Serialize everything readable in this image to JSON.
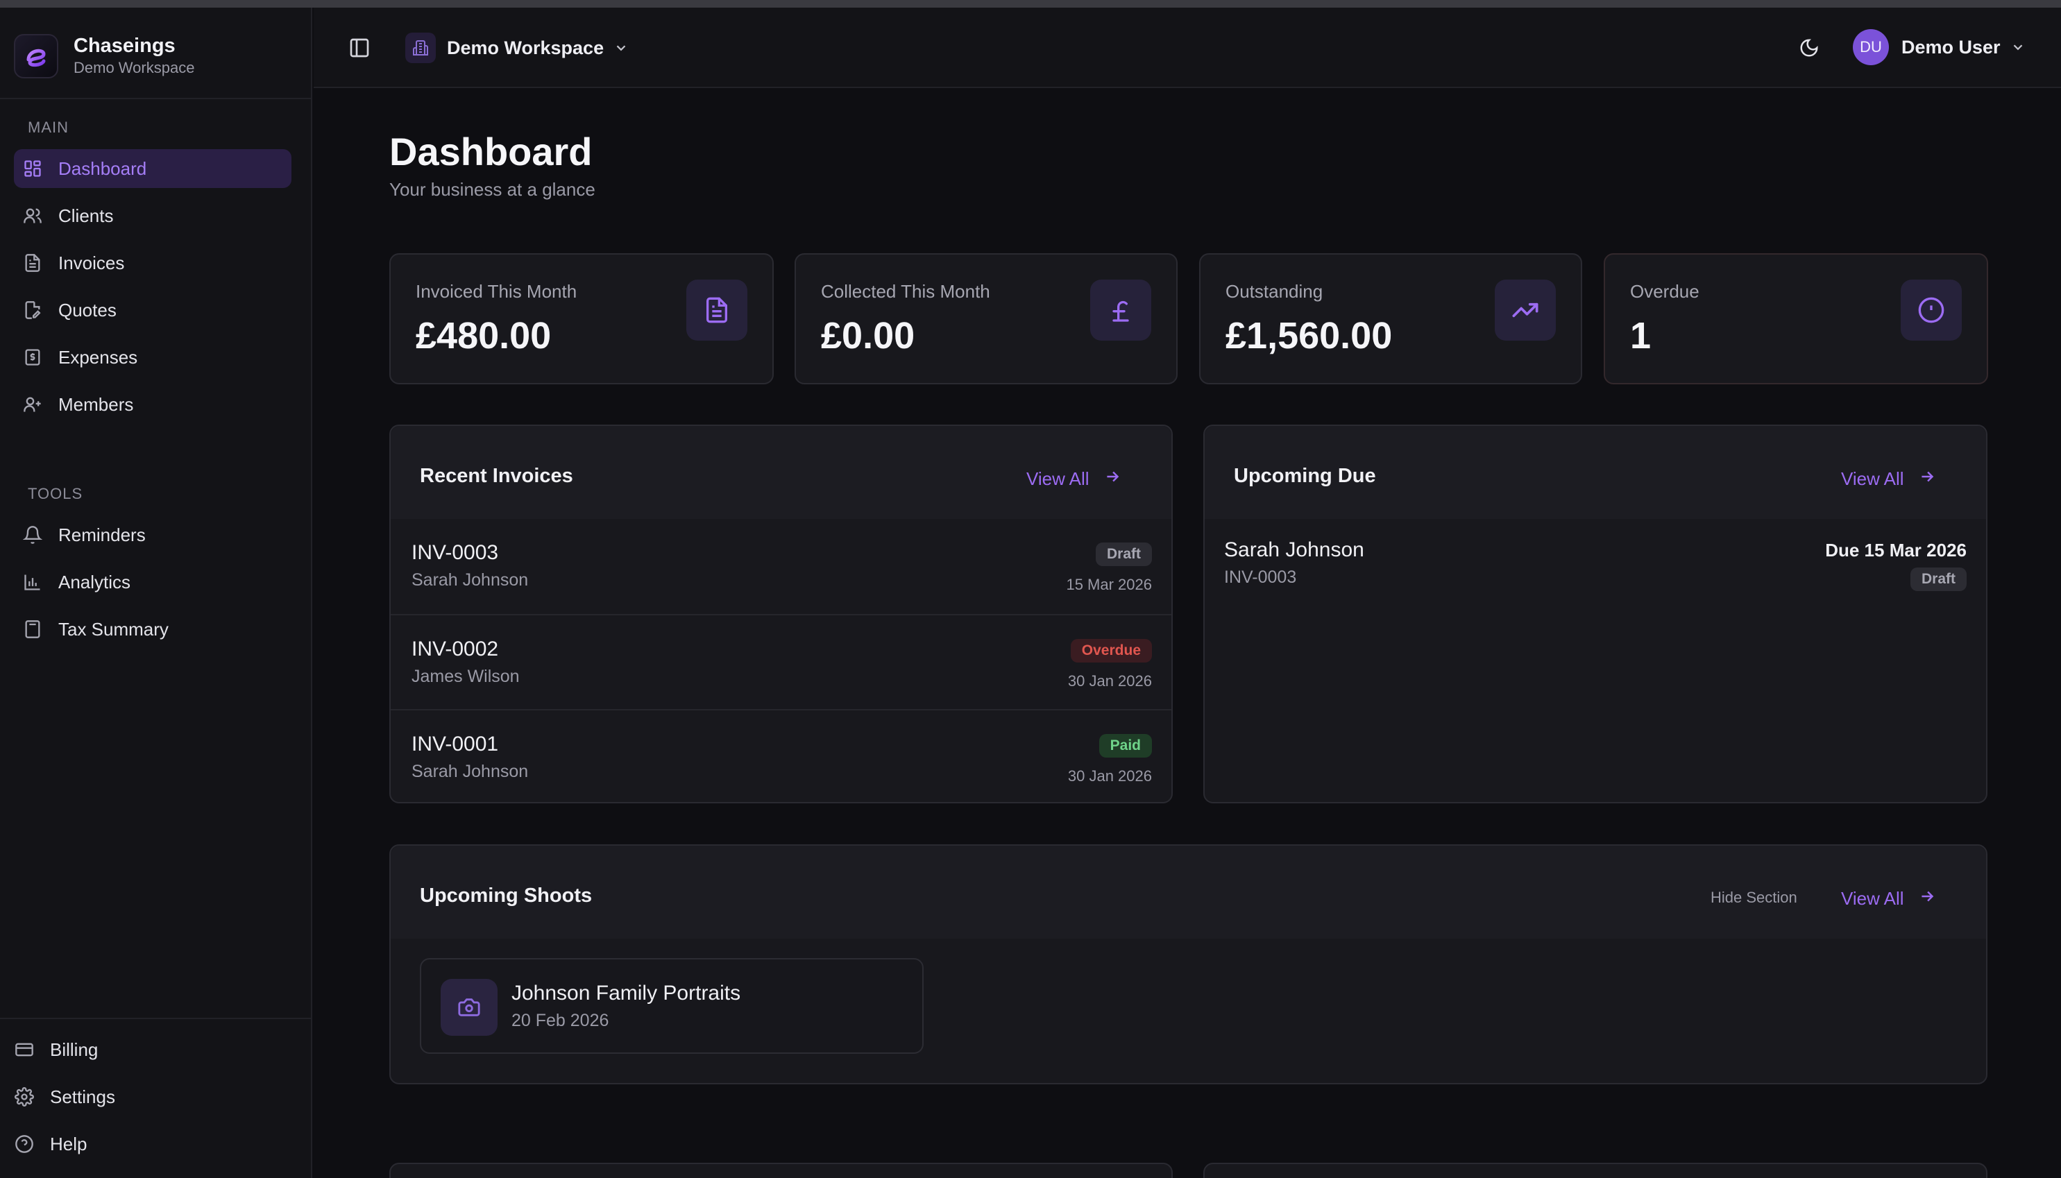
{
  "app": {
    "name": "Chaseings",
    "workspace_label": "Demo Workspace"
  },
  "sidebar": {
    "main_label": "MAIN",
    "tools_label": "TOOLS",
    "main_items": [
      {
        "label": "Dashboard",
        "icon": "dashboard-icon",
        "active": true
      },
      {
        "label": "Clients",
        "icon": "users-icon"
      },
      {
        "label": "Invoices",
        "icon": "file-text-icon"
      },
      {
        "label": "Quotes",
        "icon": "file-edit-icon"
      },
      {
        "label": "Expenses",
        "icon": "receipt-icon"
      },
      {
        "label": "Members",
        "icon": "user-plus-icon"
      }
    ],
    "tool_items": [
      {
        "label": "Reminders",
        "icon": "bell-icon"
      },
      {
        "label": "Analytics",
        "icon": "bar-chart-icon"
      },
      {
        "label": "Tax Summary",
        "icon": "calculator-icon"
      }
    ],
    "bottom_items": [
      {
        "label": "Billing",
        "icon": "credit-card-icon"
      },
      {
        "label": "Settings",
        "icon": "gear-icon"
      },
      {
        "label": "Help",
        "icon": "help-circle-icon"
      }
    ]
  },
  "topbar": {
    "workspace": "Demo Workspace",
    "user_initials": "DU",
    "user_name": "Demo User"
  },
  "page": {
    "title": "Dashboard",
    "subtitle": "Your business at a glance"
  },
  "stats": [
    {
      "label": "Invoiced This Month",
      "value": "£480.00",
      "icon": "file-icon"
    },
    {
      "label": "Collected This Month",
      "value": "£0.00",
      "icon": "pound-icon"
    },
    {
      "label": "Outstanding",
      "value": "£1,560.00",
      "icon": "trending-up-icon"
    },
    {
      "label": "Overdue",
      "value": "1",
      "icon": "alert-circle-icon"
    }
  ],
  "recent_invoices": {
    "title": "Recent Invoices",
    "view_all": "View All",
    "rows": [
      {
        "id": "INV-0003",
        "client": "Sarah Johnson",
        "status": "Draft",
        "status_kind": "draft",
        "date": "15 Mar 2026"
      },
      {
        "id": "INV-0002",
        "client": "James Wilson",
        "status": "Overdue",
        "status_kind": "overdue",
        "date": "30 Jan 2026"
      },
      {
        "id": "INV-0001",
        "client": "Sarah Johnson",
        "status": "Paid",
        "status_kind": "paid",
        "date": "30 Jan 2026"
      }
    ]
  },
  "upcoming_due": {
    "title": "Upcoming Due",
    "view_all": "View All",
    "item": {
      "client": "Sarah Johnson",
      "invoice": "INV-0003",
      "due": "Due 15 Mar 2026",
      "status": "Draft"
    }
  },
  "upcoming_shoots": {
    "title": "Upcoming Shoots",
    "hide_label": "Hide Section",
    "view_all": "View All",
    "item": {
      "title": "Johnson Family Portraits",
      "date": "20 Feb 2026"
    }
  },
  "colors": {
    "accent": "#9c6cf3",
    "background": "#0e0e12",
    "overdue": "#e0564f",
    "paid": "#6fd48a"
  }
}
